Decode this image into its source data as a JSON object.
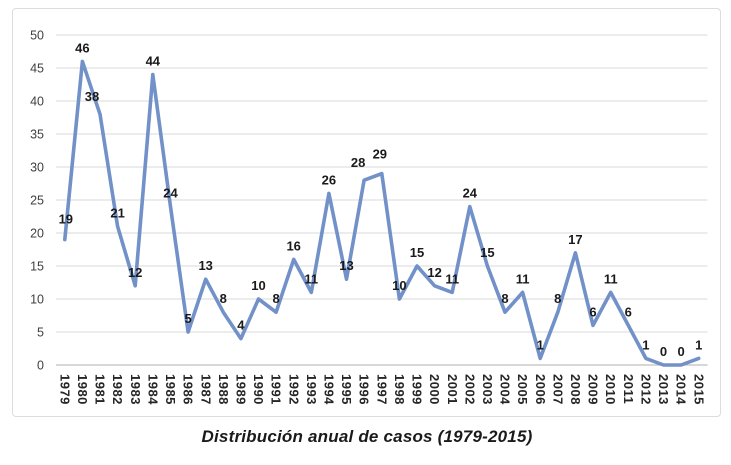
{
  "chart_data": {
    "type": "line",
    "title": "Distribución anual de casos (1979-2015)",
    "xlabel": "",
    "ylabel": "",
    "categories": [
      "1979",
      "1980",
      "1981",
      "1982",
      "1983",
      "1984",
      "1985",
      "1986",
      "1987",
      "1988",
      "1989",
      "1990",
      "1991",
      "1992",
      "1993",
      "1994",
      "1995",
      "1996",
      "1997",
      "1998",
      "1999",
      "2000",
      "2001",
      "2002",
      "2003",
      "2004",
      "2005",
      "2006",
      "2007",
      "2008",
      "2009",
      "2010",
      "2011",
      "2012",
      "2013",
      "2014",
      "2015"
    ],
    "values": [
      19,
      46,
      38,
      21,
      12,
      44,
      24,
      5,
      13,
      8,
      4,
      10,
      8,
      16,
      11,
      26,
      13,
      28,
      29,
      10,
      15,
      12,
      11,
      24,
      15,
      8,
      11,
      1,
      8,
      17,
      6,
      11,
      6,
      1,
      0,
      0,
      1
    ],
    "ylim": [
      0,
      50
    ],
    "ytick_step": 5,
    "grid": true,
    "legend": false,
    "data_labels": true,
    "colors": {
      "line": "#7191C8",
      "grid": "#D9D9D9",
      "axis": "#BFBFBF",
      "y_tick_text": "#3F3F3F",
      "x_tick_text": "#262626",
      "data_label": "#1A1A1A",
      "frame_border": "#DCDCDC"
    }
  }
}
